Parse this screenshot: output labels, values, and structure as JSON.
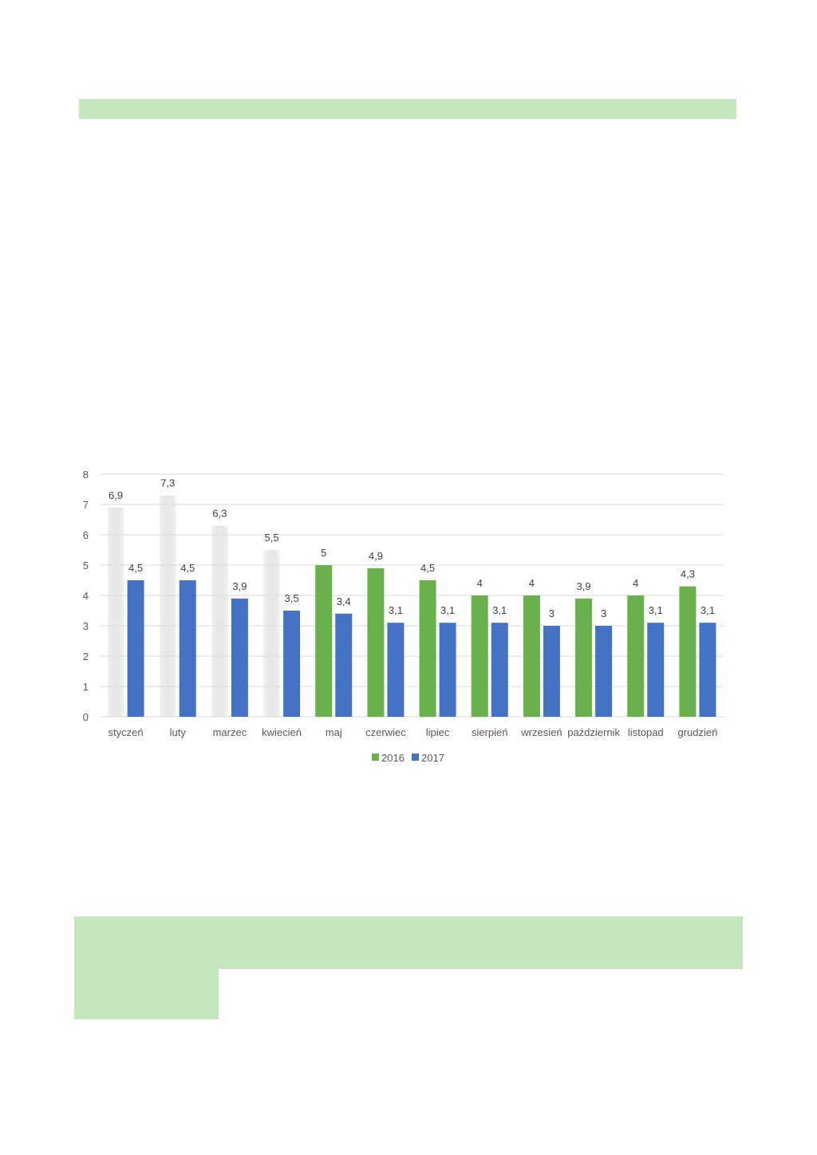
{
  "colors": {
    "band": "#c6e6bd",
    "series_2016": "#6ab04c",
    "series_2017": "#4472c4",
    "series_2016_faded": "#e2e2e2",
    "grid": "#d9d9d9"
  },
  "chart_data": {
    "type": "bar",
    "categories": [
      "styczeń",
      "luty",
      "marzec",
      "kwiecień",
      "maj",
      "czerwiec",
      "lipiec",
      "sierpień",
      "wrzesień",
      "październik",
      "listopad",
      "grudzień"
    ],
    "series": [
      {
        "name": "2016",
        "values": [
          6.9,
          7.3,
          6.3,
          5.5,
          5,
          4.9,
          4.5,
          4,
          4,
          3.9,
          4,
          4.3
        ],
        "labels": [
          "6,9",
          "7,3",
          "6,3",
          "5,5",
          "5",
          "4,9",
          "4,5",
          "4",
          "4",
          "3,9",
          "4",
          "4,3"
        ]
      },
      {
        "name": "2017",
        "values": [
          4.5,
          4.5,
          3.9,
          3.5,
          3.4,
          3.1,
          3.1,
          3.1,
          3,
          3,
          3.1,
          3.1
        ],
        "labels": [
          "4,5",
          "4,5",
          "3,9",
          "3,5",
          "3,4",
          "3,1",
          "3,1",
          "3,1",
          "3",
          "3",
          "3,1",
          "3,1"
        ]
      }
    ],
    "title": "",
    "xlabel": "",
    "ylabel": "",
    "ylim": [
      0,
      8
    ],
    "yticks": [
      0,
      1,
      2,
      3,
      4,
      5,
      6,
      7,
      8
    ],
    "grid": true,
    "legend": "bottom-center",
    "faded_bars_2016": [
      "styczeń",
      "luty",
      "marzec",
      "kwiecień"
    ]
  }
}
